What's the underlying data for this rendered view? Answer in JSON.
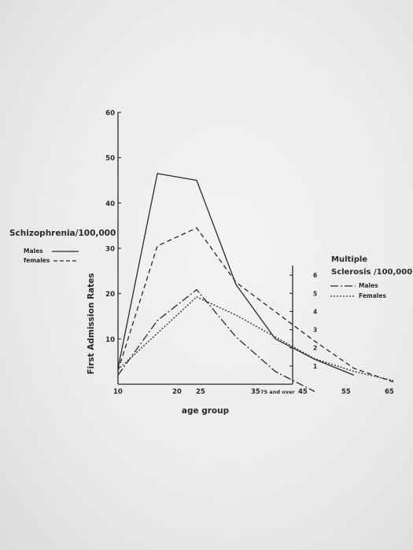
{
  "chart_data": {
    "type": "line",
    "xlabel": "age group",
    "ylabel": "First Admission Rates",
    "x_ticks": [
      "10",
      "20",
      "25",
      "35",
      "45",
      "55",
      "65",
      "75 and over"
    ],
    "left_axis": {
      "title": "Schizophrenia/100,000",
      "ticks": [
        "10",
        "20",
        "30",
        "40",
        "50",
        "60"
      ],
      "ylim": [
        0,
        60
      ]
    },
    "right_axis": {
      "title_line1": "Multiple",
      "title_line2": "Sclerosis /100,000",
      "ticks": [
        "1",
        "2",
        "3",
        "4",
        "5",
        "6"
      ],
      "ylim": [
        0,
        7
      ]
    },
    "legend_left": {
      "males": "Males",
      "females": "females"
    },
    "legend_right": {
      "males": "Males",
      "females": "Females"
    },
    "series": [
      {
        "name": "Males",
        "axis": "left",
        "style": "solid",
        "x": [
          10,
          20,
          30,
          40,
          50,
          60,
          70
        ],
        "y": [
          3.5,
          46.5,
          45,
          22,
          10,
          5.5,
          2
        ]
      },
      {
        "name": "females",
        "axis": "left",
        "style": "dashed",
        "x": [
          10,
          20,
          30,
          40,
          50,
          60,
          70,
          80
        ],
        "y": [
          3,
          30.5,
          34.5,
          22.5,
          16,
          9.5,
          3.5,
          0.5
        ]
      },
      {
        "name": "Males",
        "axis": "right",
        "style": "dash-dot",
        "x": [
          10,
          20,
          30,
          40,
          50,
          60
        ],
        "y": [
          0.5,
          3.5,
          5.2,
          2.6,
          0.7,
          -0.4
        ]
      },
      {
        "name": "Females",
        "axis": "right",
        "style": "dotted",
        "x": [
          10,
          30,
          40,
          50,
          60,
          70,
          80
        ],
        "y": [
          0.8,
          4.8,
          3.8,
          2.6,
          1.4,
          0.7,
          0.2
        ]
      }
    ]
  }
}
